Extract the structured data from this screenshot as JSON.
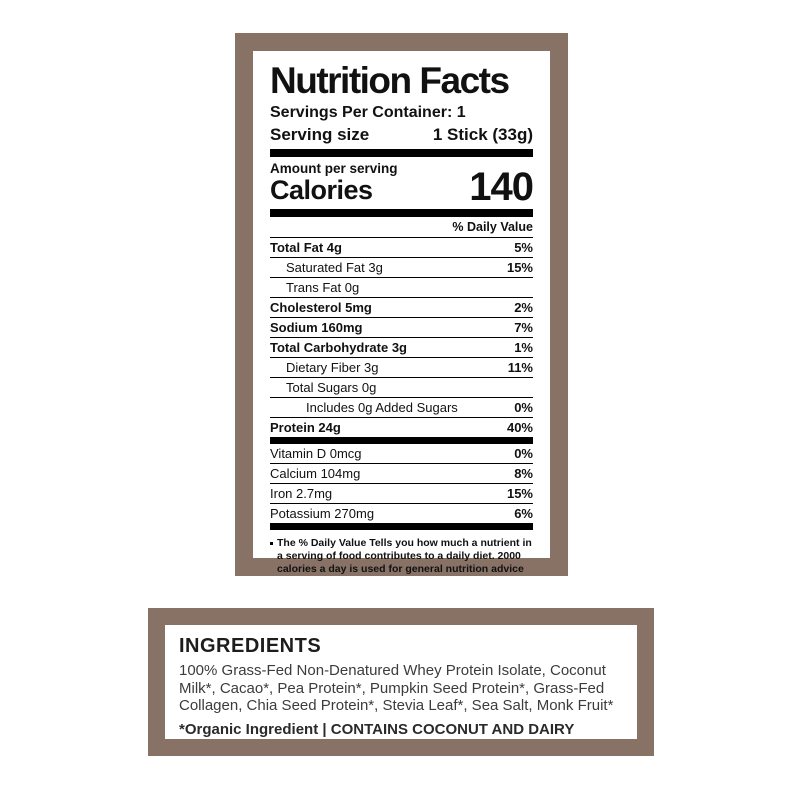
{
  "colors": {
    "frame_brown": "#877265",
    "text_black": "#111111",
    "background": "#ffffff"
  },
  "nutrition": {
    "title": "Nutrition Facts",
    "servings_per_container": "Servings Per Container: 1",
    "serving_size_label": "Serving size",
    "serving_size_value": "1 Stick (33g)",
    "amount_per_serving": "Amount per serving",
    "calories_label": "Calories",
    "calories_value": "140",
    "daily_value_header": "% Daily Value",
    "rows": [
      {
        "label": "Total Fat 4g",
        "value": "5%",
        "bold": true,
        "indent": 0
      },
      {
        "label": "Saturated Fat 3g",
        "value": "15%",
        "bold": false,
        "indent": 1
      },
      {
        "label": "Trans Fat 0g",
        "value": "",
        "bold": false,
        "indent": 1
      },
      {
        "label": "Cholesterol 5mg",
        "value": "2%",
        "bold": true,
        "indent": 0
      },
      {
        "label": "Sodium 160mg",
        "value": "7%",
        "bold": true,
        "indent": 0
      },
      {
        "label": "Total Carbohydrate 3g",
        "value": "1%",
        "bold": true,
        "indent": 0
      },
      {
        "label": "Dietary Fiber 3g",
        "value": "11%",
        "bold": false,
        "indent": 1
      },
      {
        "label": "Total Sugars 0g",
        "value": "",
        "bold": false,
        "indent": 1
      },
      {
        "label": "Includes 0g Added Sugars",
        "value": "0%",
        "bold": false,
        "indent": 2
      },
      {
        "label": "Protein 24g",
        "value": "40%",
        "bold": true,
        "indent": 0
      }
    ],
    "vitamin_rows": [
      {
        "label": "Vitamin D 0mcg",
        "value": "0%",
        "bold": false,
        "indent": 0
      },
      {
        "label": "Calcium 104mg",
        "value": "8%",
        "bold": false,
        "indent": 0
      },
      {
        "label": "Iron 2.7mg",
        "value": "15%",
        "bold": false,
        "indent": 0
      },
      {
        "label": "Potassium 270mg",
        "value": "6%",
        "bold": false,
        "indent": 0
      }
    ],
    "footnote": "The % Daily Value Tells you how much a nutrient in a serving of food contributes to a daily diet. 2000 calories a day is used for general nutrition advice"
  },
  "ingredients": {
    "title": "INGREDIENTS",
    "body": "100% Grass-Fed Non-Denatured Whey Protein Isolate, Coconut Milk*, Cacao*, Pea Protein*, Pumpkin Seed Protein*, Grass-Fed Collagen, Chia Seed Protein*, Stevia Leaf*, Sea Salt, Monk Fruit*",
    "organic_note": "*Organic Ingredient | ",
    "allergen_note": "CONTAINS COCONUT AND DAIRY"
  }
}
